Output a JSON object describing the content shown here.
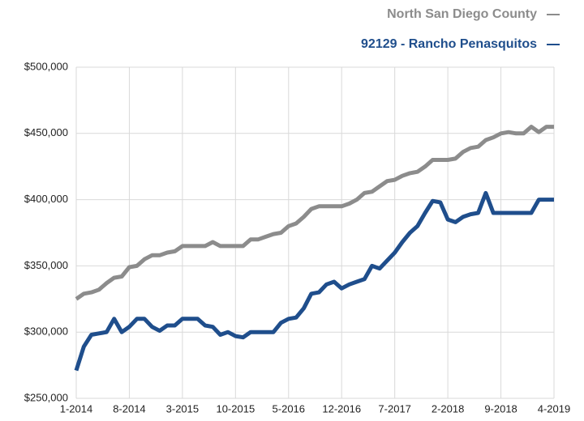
{
  "chart_data": {
    "type": "line",
    "categories": [
      "1-2014",
      null,
      null,
      null,
      null,
      null,
      null,
      "8-2014",
      null,
      null,
      null,
      null,
      null,
      null,
      "3-2015",
      null,
      null,
      null,
      null,
      null,
      null,
      "10-2015",
      null,
      null,
      null,
      null,
      null,
      null,
      "5-2016",
      null,
      null,
      null,
      null,
      null,
      null,
      "12-2016",
      null,
      null,
      null,
      null,
      null,
      null,
      "7-2017",
      null,
      null,
      null,
      null,
      null,
      null,
      "2-2018",
      null,
      null,
      null,
      null,
      null,
      null,
      "9-2018",
      null,
      null,
      null,
      null,
      null,
      null,
      "4-2019"
    ],
    "series": [
      {
        "name": "North San Diego County",
        "color": "#8c8c8c",
        "values": [
          325000,
          329000,
          330000,
          332000,
          337000,
          341000,
          342000,
          349000,
          350000,
          355000,
          358000,
          358000,
          360000,
          361000,
          365000,
          365000,
          365000,
          365000,
          368000,
          365000,
          365000,
          365000,
          365000,
          370000,
          370000,
          372000,
          374000,
          375000,
          380000,
          382000,
          387000,
          393000,
          395000,
          395000,
          395000,
          395000,
          397000,
          400000,
          405000,
          406000,
          410000,
          414000,
          415000,
          418000,
          420000,
          421000,
          425000,
          430000,
          430000,
          430000,
          431000,
          436000,
          439000,
          440000,
          445000,
          447000,
          450000,
          451000,
          450000,
          450000,
          455000,
          451000,
          455000,
          455000
        ]
      },
      {
        "name": "92129 - Rancho Penasquitos",
        "color": "#1f4e8c",
        "values": [
          271000,
          289000,
          298000,
          299000,
          300000,
          310000,
          300000,
          304000,
          310000,
          310000,
          304000,
          301000,
          305000,
          305000,
          310000,
          310000,
          310000,
          305000,
          304000,
          298000,
          300000,
          297000,
          296000,
          300000,
          300000,
          300000,
          300000,
          307000,
          310000,
          311000,
          318000,
          329000,
          330000,
          336000,
          338000,
          333000,
          336000,
          338000,
          340000,
          350000,
          348000,
          354000,
          360000,
          368000,
          375000,
          380000,
          390000,
          399000,
          398000,
          385000,
          383000,
          387000,
          389000,
          390000,
          405000,
          390000,
          390000,
          390000,
          390000,
          390000,
          390000,
          400000,
          400000,
          400000
        ]
      }
    ],
    "ylim": [
      250000,
      500000
    ],
    "yticks": [
      {
        "value": 250000,
        "label": "$250,000"
      },
      {
        "value": 300000,
        "label": "$300,000"
      },
      {
        "value": 350000,
        "label": "$350,000"
      },
      {
        "value": 400000,
        "label": "$400,000"
      },
      {
        "value": 450000,
        "label": "$450,000"
      },
      {
        "value": 500000,
        "label": "$500,000"
      }
    ],
    "grid": true
  }
}
